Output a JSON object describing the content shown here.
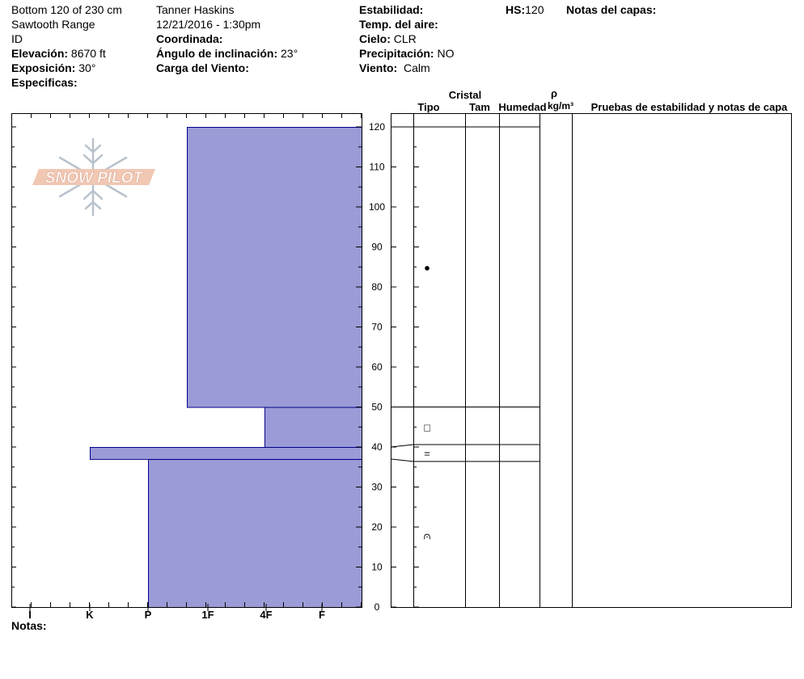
{
  "header": {
    "col1": [
      "Bottom 120 of 230 cm",
      "Sawtooth Range",
      "ID"
    ],
    "elev_label": "Elevación:",
    "elev_value": "8670 ft",
    "expo_label": "Exposición:",
    "expo_value": "30°",
    "spec_label": "Especificas:",
    "observer": "Tanner Haskins",
    "datetime": "12/21/2016 - 1:30pm",
    "coord_label": "Coordinada:",
    "slope_label": "Ángulo de inclinación:",
    "slope_value": "23°",
    "wind_load_label": "Carga del Viento:",
    "stab_label": "Estabilidad:",
    "air_label": "Temp. del aire:",
    "sky_label": "Cielo:",
    "sky_value": "CLR",
    "precip_label": "Precipitación:",
    "precip_value": "NO",
    "wind_label": "Viento:",
    "wind_value": "Calm",
    "hs_label": "HS:",
    "hs_value": "120",
    "layer_notes_label": "Notas del capas:"
  },
  "logo_text": "SNOW PILOT",
  "notes_label": "Notas:",
  "columns": {
    "crystal": "Cristal",
    "type": "Tipo",
    "size": "Tam",
    "moisture": "Humedad",
    "rho": "ρ",
    "density_unit": "kg/m³",
    "tests": "Pruebas de estabilidad y notas de capa"
  },
  "chart_data": {
    "type": "bar",
    "orientation": "horizontal-profile",
    "xlabel": "",
    "ylabel": "",
    "ylim": [
      0,
      120
    ],
    "y_ticks": [
      0,
      10,
      20,
      30,
      40,
      50,
      60,
      70,
      80,
      90,
      100,
      110,
      120
    ],
    "hardness_scale": [
      "I",
      "K",
      "P",
      "1F",
      "4F",
      "F"
    ],
    "fill_color": "#9b9bd7",
    "layers": [
      {
        "bottom": 0,
        "top": 37,
        "hardness": "P"
      },
      {
        "bottom": 37,
        "top": 40,
        "hardness": "K"
      },
      {
        "bottom": 40,
        "top": 50,
        "hardness": "4F"
      },
      {
        "bottom": 50,
        "top": 120,
        "hardness": "1F+"
      }
    ],
    "crystal_symbols": [
      {
        "height": 85,
        "symbol": "●"
      },
      {
        "height": 45,
        "symbol": "□"
      },
      {
        "height": 38.5,
        "symbol": "="
      },
      {
        "height": 18,
        "symbol": "⩀"
      }
    ]
  }
}
